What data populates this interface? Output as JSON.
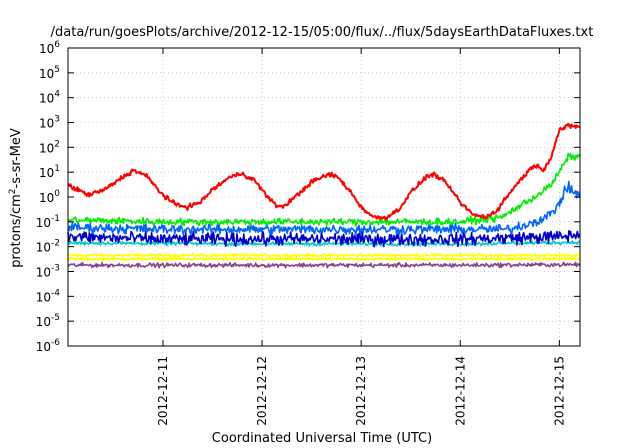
{
  "chart_data": {
    "type": "line",
    "title": "/data/run/goesPlots/archive/2012-12-15/05:00/flux/../flux/5daysEarthDataFluxes.txt",
    "xlabel": "Coordinated Universal Time (UTC)",
    "ylabel": {
      "base": "protons/cm",
      "sup": "2",
      "rest": "-s-sr-MeV"
    },
    "yscale": "log",
    "ylim": [
      1e-06,
      1000000.0
    ],
    "xlim": [
      "2012-12-10T01:00",
      "2012-12-15T05:00"
    ],
    "grid": true,
    "legend": "none",
    "y_ticks": [
      {
        "base": "10",
        "exp": "-6",
        "value": 1e-06
      },
      {
        "base": "10",
        "exp": "-5",
        "value": 1e-05
      },
      {
        "base": "10",
        "exp": "-4",
        "value": 0.0001
      },
      {
        "base": "10",
        "exp": "-3",
        "value": 0.001
      },
      {
        "base": "10",
        "exp": "-2",
        "value": 0.01
      },
      {
        "base": "10",
        "exp": "-1",
        "value": 0.1
      },
      {
        "base": "10",
        "exp": "0",
        "value": 1
      },
      {
        "base": "10",
        "exp": "1",
        "value": 10
      },
      {
        "base": "10",
        "exp": "2",
        "value": 100
      },
      {
        "base": "10",
        "exp": "3",
        "value": 1000
      },
      {
        "base": "10",
        "exp": "4",
        "value": 10000
      },
      {
        "base": "10",
        "exp": "5",
        "value": 100000
      },
      {
        "base": "10",
        "exp": "6",
        "value": 1000000
      }
    ],
    "x_ticks": [
      {
        "label": "2012-12-11",
        "value": "2012-12-11T00:00"
      },
      {
        "label": "2012-12-12",
        "value": "2012-12-12T00:00"
      },
      {
        "label": "2012-12-13",
        "value": "2012-12-13T00:00"
      },
      {
        "label": "2012-12-14",
        "value": "2012-12-14T00:00"
      },
      {
        "label": "2012-12-15",
        "value": "2012-12-15T00:00"
      }
    ],
    "series": [
      {
        "color": "#ff0000",
        "noise": 0.08,
        "points": [
          [
            "2012-12-10T01:00",
            3
          ],
          [
            "2012-12-10T06:00",
            1.2
          ],
          [
            "2012-12-10T10:00",
            2
          ],
          [
            "2012-12-10T14:00",
            6
          ],
          [
            "2012-12-10T17:00",
            12
          ],
          [
            "2012-12-10T20:00",
            7
          ],
          [
            "2012-12-11T00:00",
            1.2
          ],
          [
            "2012-12-11T03:00",
            0.5
          ],
          [
            "2012-12-11T06:00",
            0.4
          ],
          [
            "2012-12-11T09:00",
            0.6
          ],
          [
            "2012-12-11T12:00",
            2
          ],
          [
            "2012-12-11T16:00",
            6
          ],
          [
            "2012-12-11T19:00",
            9
          ],
          [
            "2012-12-11T22:00",
            5
          ],
          [
            "2012-12-12T01:00",
            1.2
          ],
          [
            "2012-12-12T03:00",
            0.5
          ],
          [
            "2012-12-12T05:00",
            0.4
          ],
          [
            "2012-12-12T08:00",
            1
          ],
          [
            "2012-12-12T12:00",
            4
          ],
          [
            "2012-12-12T16:00",
            8
          ],
          [
            "2012-12-12T18:00",
            7
          ],
          [
            "2012-12-12T21:00",
            2
          ],
          [
            "2012-12-13T00:00",
            0.4
          ],
          [
            "2012-12-13T03:00",
            0.15
          ],
          [
            "2012-12-13T06:00",
            0.15
          ],
          [
            "2012-12-13T09:00",
            0.3
          ],
          [
            "2012-12-13T12:00",
            1.5
          ],
          [
            "2012-12-13T16:00",
            7
          ],
          [
            "2012-12-13T18:00",
            8
          ],
          [
            "2012-12-13T21:00",
            3
          ],
          [
            "2012-12-14T00:00",
            0.6
          ],
          [
            "2012-12-14T03:00",
            0.2
          ],
          [
            "2012-12-14T06:00",
            0.15
          ],
          [
            "2012-12-14T09:00",
            0.3
          ],
          [
            "2012-12-14T12:00",
            1.5
          ],
          [
            "2012-12-14T15:00",
            6
          ],
          [
            "2012-12-14T18:00",
            20
          ],
          [
            "2012-12-14T20:00",
            12
          ],
          [
            "2012-12-14T22:00",
            40
          ],
          [
            "2012-12-14T23:00",
            150
          ],
          [
            "2012-12-15T00:00",
            500
          ],
          [
            "2012-12-15T02:00",
            700
          ],
          [
            "2012-12-15T05:00",
            700
          ]
        ]
      },
      {
        "color": "#00ee00",
        "noise": 0.12,
        "points": [
          [
            "2012-12-10T01:00",
            0.12
          ],
          [
            "2012-12-11T00:00",
            0.1
          ],
          [
            "2012-12-12T00:00",
            0.1
          ],
          [
            "2012-12-13T00:00",
            0.1
          ],
          [
            "2012-12-14T00:00",
            0.1
          ],
          [
            "2012-12-14T10:00",
            0.15
          ],
          [
            "2012-12-14T14:00",
            0.4
          ],
          [
            "2012-12-14T18:00",
            1
          ],
          [
            "2012-12-14T22:00",
            3
          ],
          [
            "2012-12-15T00:00",
            10
          ],
          [
            "2012-12-15T02:00",
            40
          ],
          [
            "2012-12-15T05:00",
            45
          ]
        ]
      },
      {
        "color": "#0066ff",
        "noise": 0.17,
        "points": [
          [
            "2012-12-10T01:00",
            0.06
          ],
          [
            "2012-12-11T00:00",
            0.05
          ],
          [
            "2012-12-12T00:00",
            0.05
          ],
          [
            "2012-12-13T00:00",
            0.05
          ],
          [
            "2012-12-14T00:00",
            0.05
          ],
          [
            "2012-12-14T12:00",
            0.05
          ],
          [
            "2012-12-14T18:00",
            0.1
          ],
          [
            "2012-12-14T22:00",
            0.2
          ],
          [
            "2012-12-15T00:00",
            0.6
          ],
          [
            "2012-12-15T02:00",
            2.5
          ],
          [
            "2012-12-15T05:00",
            1.1
          ]
        ]
      },
      {
        "color": "#0000cc",
        "noise": 0.22,
        "points": [
          [
            "2012-12-10T01:00",
            0.025
          ],
          [
            "2012-12-11T00:00",
            0.02
          ],
          [
            "2012-12-12T00:00",
            0.02
          ],
          [
            "2012-12-13T00:00",
            0.02
          ],
          [
            "2012-12-14T00:00",
            0.02
          ],
          [
            "2012-12-15T00:00",
            0.025
          ],
          [
            "2012-12-15T05:00",
            0.03
          ]
        ]
      },
      {
        "color": "#00cccc",
        "noise": 0.06,
        "points": [
          [
            "2012-12-10T01:00",
            0.014
          ],
          [
            "2012-12-12T00:00",
            0.013
          ],
          [
            "2012-12-14T00:00",
            0.013
          ],
          [
            "2012-12-15T05:00",
            0.015
          ]
        ]
      },
      {
        "color": "#ffff00",
        "noise": 0.05,
        "points": [
          [
            "2012-12-10T01:00",
            0.0045
          ],
          [
            "2012-12-12T00:00",
            0.0045
          ],
          [
            "2012-12-14T00:00",
            0.0045
          ],
          [
            "2012-12-15T05:00",
            0.0045
          ]
        ]
      },
      {
        "color": "#ffff00",
        "noise": 0.05,
        "points": [
          [
            "2012-12-10T01:00",
            0.0032
          ],
          [
            "2012-12-12T00:00",
            0.0032
          ],
          [
            "2012-12-14T00:00",
            0.0032
          ],
          [
            "2012-12-15T05:00",
            0.0032
          ]
        ]
      },
      {
        "color": "#884488",
        "noise": 0.07,
        "points": [
          [
            "2012-12-10T01:00",
            0.0018
          ],
          [
            "2012-12-12T00:00",
            0.0018
          ],
          [
            "2012-12-14T00:00",
            0.0018
          ],
          [
            "2012-12-15T05:00",
            0.0019
          ]
        ]
      }
    ]
  }
}
